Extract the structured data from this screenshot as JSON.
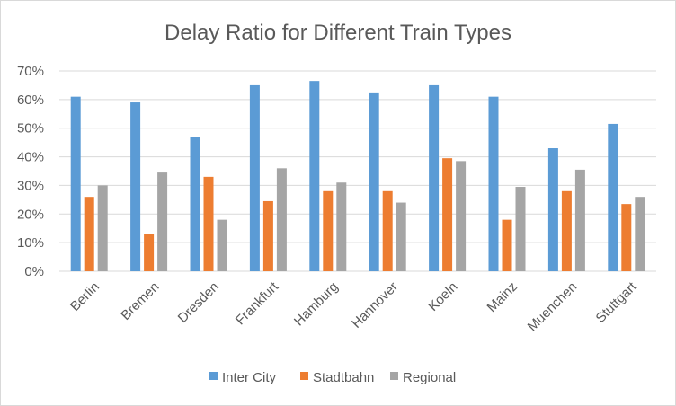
{
  "chart_data": {
    "type": "bar",
    "title": "Delay Ratio for Different Train Types",
    "xlabel": "",
    "ylabel": "",
    "categories": [
      "Berlin",
      "Bremen",
      "Dresden",
      "Frankfurt",
      "Hamburg",
      "Hannover",
      "Koeln",
      "Mainz",
      "Muenchen",
      "Stuttgart"
    ],
    "series": [
      {
        "name": "Inter City",
        "color": "#5b9bd5",
        "values": [
          0.61,
          0.59,
          0.47,
          0.65,
          0.665,
          0.625,
          0.65,
          0.61,
          0.43,
          0.515
        ]
      },
      {
        "name": "Stadtbahn",
        "color": "#ed7d31",
        "values": [
          0.26,
          0.13,
          0.33,
          0.245,
          0.28,
          0.28,
          0.395,
          0.18,
          0.28,
          0.235
        ]
      },
      {
        "name": "Regional",
        "color": "#a5a5a5",
        "values": [
          0.3,
          0.345,
          0.18,
          0.36,
          0.31,
          0.24,
          0.385,
          0.295,
          0.355,
          0.26
        ]
      }
    ],
    "ylim": [
      0,
      0.7
    ],
    "yticks": [
      "0%",
      "10%",
      "20%",
      "30%",
      "40%",
      "50%",
      "60%",
      "70%"
    ],
    "grid": true,
    "legend_position": "bottom"
  }
}
